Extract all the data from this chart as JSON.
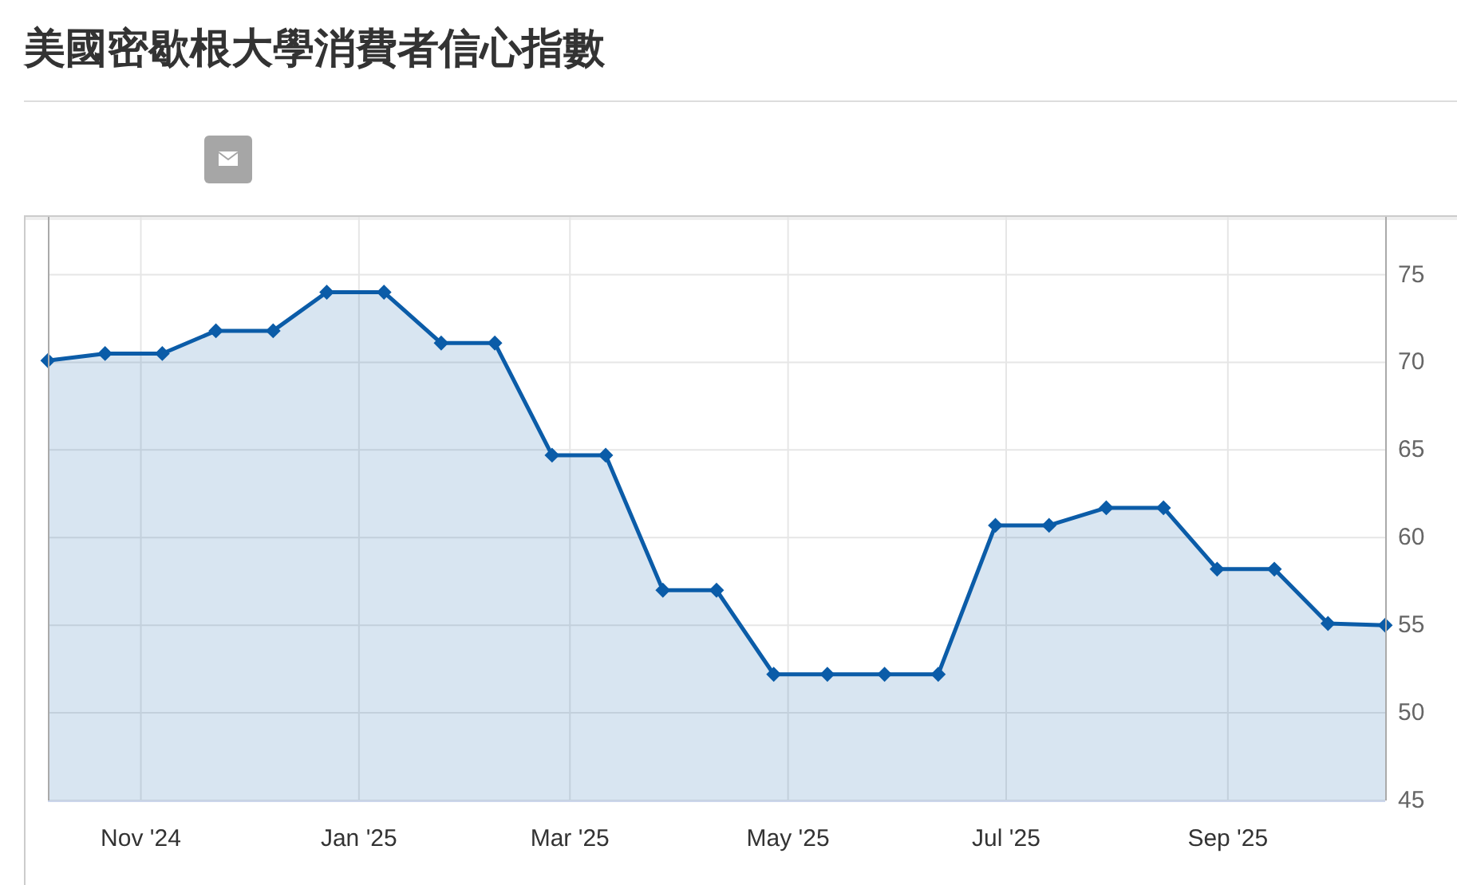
{
  "chart_data": {
    "type": "area",
    "title": "美國密歇根大學消費者信心指數",
    "x": [
      "2024-10-06",
      "2024-10-22",
      "2024-11-07",
      "2024-11-22",
      "2024-12-08",
      "2024-12-23",
      "2025-01-08",
      "2025-01-24",
      "2025-02-08",
      "2025-02-24",
      "2025-03-11",
      "2025-03-27",
      "2025-04-11",
      "2025-04-27",
      "2025-05-12",
      "2025-05-28",
      "2025-06-12",
      "2025-06-28",
      "2025-07-13",
      "2025-07-29",
      "2025-08-14",
      "2025-08-29",
      "2025-09-14",
      "2025-09-29",
      "2025-10-15"
    ],
    "series": [
      {
        "color": "#0b5ca8",
        "values": [
          70.1,
          70.5,
          70.5,
          71.8,
          71.8,
          74.0,
          74.0,
          71.1,
          71.1,
          64.7,
          64.7,
          57.0,
          57.0,
          52.2,
          52.2,
          52.2,
          52.2,
          60.7,
          60.7,
          61.7,
          61.7,
          58.2,
          58.2,
          55.1,
          55.0
        ]
      }
    ],
    "xlim": [
      "2024-10-06",
      "2025-10-15"
    ],
    "xticks": [
      {
        "value": "2024-11-01",
        "label": "Nov '24"
      },
      {
        "value": "2025-01-01",
        "label": "Jan '25"
      },
      {
        "value": "2025-03-01",
        "label": "Mar '25"
      },
      {
        "value": "2025-05-01",
        "label": "May '25"
      },
      {
        "value": "2025-07-01",
        "label": "Jul '25"
      },
      {
        "value": "2025-09-01",
        "label": "Sep '25"
      }
    ],
    "ylim": [
      45,
      78.3
    ],
    "yticks": [
      45,
      50,
      55,
      60,
      65,
      70,
      75
    ],
    "grid": true,
    "marker": "diamond",
    "line_style": "solid"
  }
}
